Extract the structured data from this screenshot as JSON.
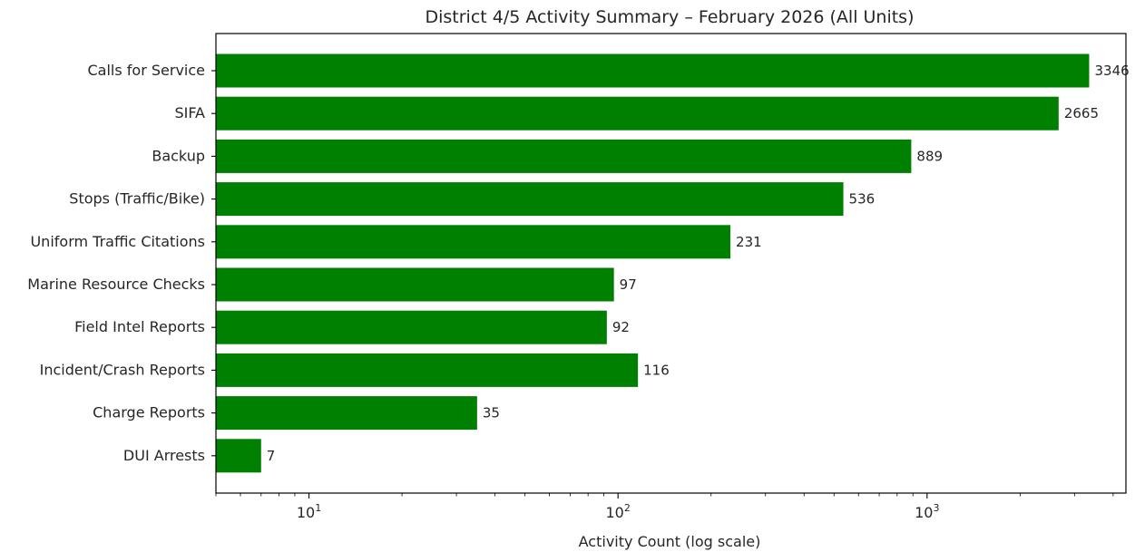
{
  "chart_data": {
    "type": "bar",
    "orientation": "horizontal",
    "title": "District 4/5 Activity Summary – February 2026 (All Units)",
    "xlabel": "Activity Count (log scale)",
    "ylabel": "",
    "x_scale": "log",
    "xlim": [
      5,
      4400
    ],
    "x_ticks": [
      {
        "value": 10,
        "base": "10",
        "exp": "1"
      },
      {
        "value": 100,
        "base": "10",
        "exp": "2"
      },
      {
        "value": 1000,
        "base": "10",
        "exp": "3"
      }
    ],
    "categories": [
      "Calls for Service",
      "SIFA",
      "Backup",
      "Stops (Traffic/Bike)",
      "Uniform Traffic Citations",
      "Marine Resource Checks",
      "Field Intel Reports",
      "Incident/Crash Reports",
      "Charge Reports",
      "DUI Arrests"
    ],
    "values": [
      3346,
      2665,
      889,
      536,
      231,
      97,
      92,
      116,
      35,
      7
    ],
    "bar_color": "#008000",
    "grid": false,
    "legend": "none"
  }
}
